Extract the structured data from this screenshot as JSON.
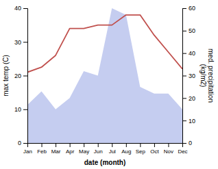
{
  "chart_data": {
    "type": "line",
    "categories": [
      "Jan",
      "Feb",
      "Mar",
      "Apr",
      "May",
      "Jun",
      "Jul",
      "Aug",
      "Sep",
      "Oct",
      "Nov",
      "Dec"
    ],
    "series": [
      {
        "type": "area",
        "axis": "y2",
        "color": "#c5cdf0",
        "values": [
          17,
          23,
          15,
          20,
          32,
          30,
          60,
          57,
          25,
          22,
          22,
          15
        ]
      },
      {
        "type": "line",
        "color": "#c0504d",
        "values": [
          21,
          22.5,
          26,
          34,
          34,
          35,
          35,
          38,
          38,
          32,
          27,
          22
        ]
      }
    ],
    "xlabel": "date (month)",
    "ylabel": "max temp (C)",
    "y2label": "med. precipitation\n(kg/m2)",
    "ylim": [
      0,
      40
    ],
    "yticks": [
      0,
      10,
      20,
      30,
      40
    ],
    "y2lim": [
      0,
      60
    ],
    "y2ticks": [
      0,
      10,
      20,
      30,
      40,
      50,
      60
    ]
  }
}
